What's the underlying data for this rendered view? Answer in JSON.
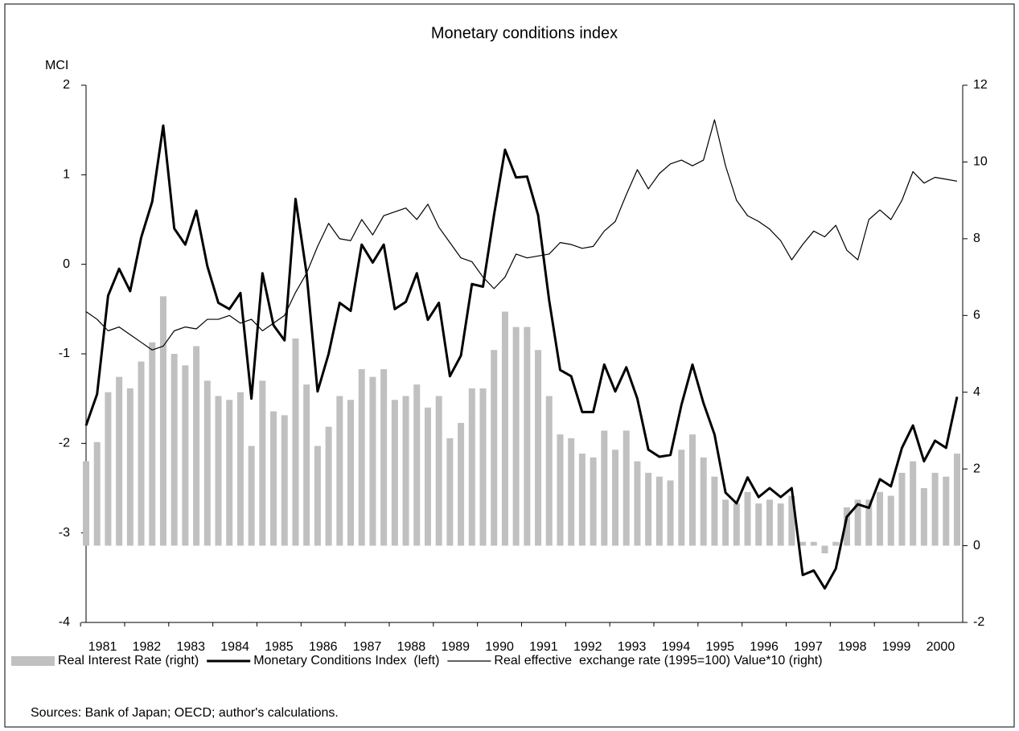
{
  "chart_data": {
    "type": "bar",
    "title": "Monetary conditions index",
    "y_label": "MCI",
    "source": "Sources: Bank of Japan; OECD; author's calculations.",
    "categories": [
      "1981",
      null,
      null,
      null,
      "1982",
      null,
      null,
      null,
      "1983",
      null,
      null,
      null,
      "1984",
      null,
      null,
      null,
      "1985",
      null,
      null,
      null,
      "1986",
      null,
      null,
      null,
      "1987",
      null,
      null,
      null,
      "1988",
      null,
      null,
      null,
      "1989",
      null,
      null,
      null,
      "1990",
      null,
      null,
      null,
      "1991",
      null,
      null,
      null,
      "1992",
      null,
      null,
      null,
      "1993",
      null,
      null,
      null,
      "1994",
      null,
      null,
      null,
      "1995",
      null,
      null,
      null,
      "1996",
      null,
      null,
      null,
      "1997",
      null,
      null,
      null,
      "1998",
      null,
      null,
      null,
      "1999",
      null,
      null,
      null,
      "2000",
      null,
      null,
      null
    ],
    "ylim": [
      -4,
      2
    ],
    "yticks": [
      -4,
      -3,
      -2,
      -1,
      0,
      1,
      2
    ],
    "y2lim": [
      -2,
      12
    ],
    "y2ticks": [
      -2,
      0,
      2,
      4,
      6,
      8,
      10,
      12
    ],
    "series": [
      {
        "name": "Real Interest Rate (right)",
        "type": "bar",
        "axis": "y2",
        "color": "#c0c0c0",
        "values": [
          2.2,
          2.7,
          4.0,
          4.4,
          4.1,
          4.8,
          5.3,
          6.5,
          5.0,
          4.7,
          5.2,
          4.3,
          3.9,
          3.8,
          4.0,
          2.6,
          4.3,
          3.5,
          3.4,
          5.4,
          4.2,
          2.6,
          3.1,
          3.9,
          3.8,
          4.6,
          4.4,
          4.6,
          3.8,
          3.9,
          4.2,
          3.6,
          3.9,
          2.8,
          3.2,
          4.1,
          4.1,
          5.1,
          6.1,
          5.7,
          5.7,
          5.1,
          3.9,
          2.9,
          2.8,
          2.4,
          2.3,
          3.0,
          2.5,
          3.0,
          2.2,
          1.9,
          1.8,
          1.7,
          2.5,
          2.9,
          2.3,
          1.8,
          1.2,
          1.1,
          1.4,
          1.1,
          1.2,
          1.1,
          1.3,
          0.1,
          0.1,
          -0.2,
          0.1,
          1.0,
          1.2,
          1.2,
          1.4,
          1.3,
          1.9,
          2.2,
          1.5,
          1.9,
          1.8,
          2.4
        ]
      },
      {
        "name": "Monetary Conditions Index  (left)",
        "type": "line",
        "color": "#000000",
        "values": [
          -1.8,
          -1.45,
          -0.35,
          -0.05,
          -0.3,
          0.3,
          0.7,
          1.55,
          0.4,
          0.22,
          0.6,
          -0.02,
          -0.43,
          -0.5,
          -0.32,
          -1.5,
          -0.1,
          -0.68,
          -0.85,
          0.73,
          -0.1,
          -1.42,
          -1.0,
          -0.43,
          -0.52,
          0.22,
          0.02,
          0.22,
          -0.5,
          -0.42,
          -0.1,
          -0.62,
          -0.43,
          -1.25,
          -1.02,
          -0.22,
          -0.25,
          0.55,
          1.28,
          0.97,
          0.98,
          0.55,
          -0.4,
          -1.18,
          -1.25,
          -1.65,
          -1.65,
          -1.12,
          -1.42,
          -1.15,
          -1.5,
          -2.07,
          -2.15,
          -2.13,
          -1.57,
          -1.12,
          -1.55,
          -1.9,
          -2.55,
          -2.67,
          -2.38,
          -2.6,
          -2.5,
          -2.6,
          -2.5,
          -3.47,
          -3.42,
          -3.62,
          -3.4,
          -2.82,
          -2.68,
          -2.72,
          -2.4,
          -2.48,
          -2.05,
          -1.8,
          -2.2,
          -1.97,
          -2.05,
          -1.48
        ]
      },
      {
        "name": "Real effective  exchange rate (1995=100) Value*10 (right)",
        "type": "line",
        "axis": "y2",
        "color": "#000000",
        "values": [
          6.1,
          5.9,
          5.6,
          5.7,
          5.5,
          5.3,
          5.1,
          5.2,
          5.6,
          5.7,
          5.65,
          5.9,
          5.9,
          6.0,
          5.8,
          5.9,
          5.6,
          5.8,
          6.0,
          6.6,
          7.1,
          7.8,
          8.4,
          8.0,
          7.95,
          8.5,
          8.1,
          8.6,
          8.7,
          8.8,
          8.5,
          8.9,
          8.3,
          7.9,
          7.5,
          7.4,
          7.0,
          6.7,
          7.0,
          7.6,
          7.5,
          7.55,
          7.6,
          7.9,
          7.85,
          7.75,
          7.8,
          8.2,
          8.45,
          9.15,
          9.8,
          9.3,
          9.7,
          9.95,
          10.05,
          9.9,
          10.05,
          11.1,
          9.9,
          9.0,
          8.6,
          8.45,
          8.25,
          7.95,
          7.45,
          7.85,
          8.2,
          8.05,
          8.35,
          7.7,
          7.45,
          8.5,
          8.75,
          8.5,
          9.0,
          9.75,
          9.45,
          9.6,
          9.55,
          9.5
        ]
      }
    ]
  }
}
